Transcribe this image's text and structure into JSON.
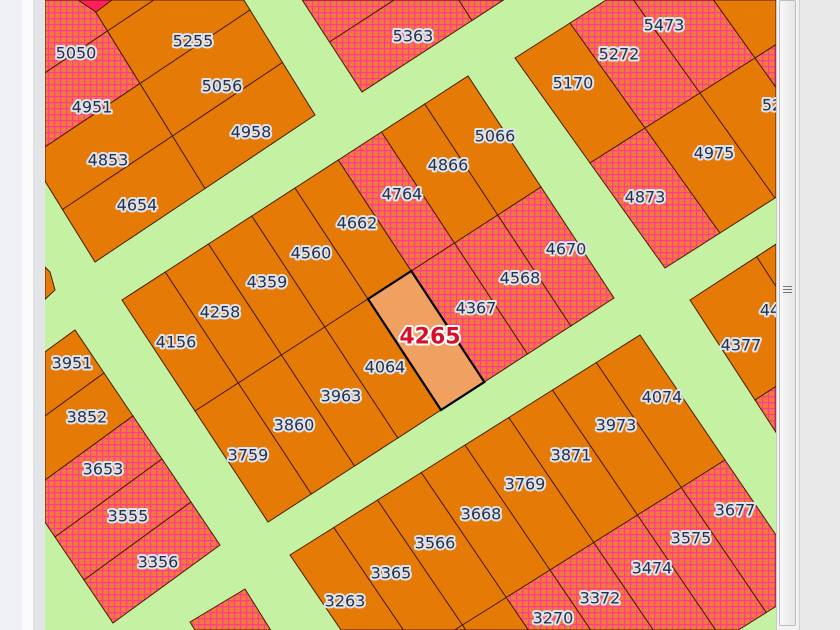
{
  "colors": {
    "street": "#c4f2a2",
    "parcel": "#e57a06",
    "hatch_background": "#f07a3a",
    "hatch_lines": "#ff3a90",
    "selected_fill": "#f0a060",
    "boundary": "#4a1e00",
    "label_text": "#26304a",
    "selected_label": "#d4102a",
    "flag": "#ff1f5a"
  },
  "legend_codes": {
    "o": "orange parcel",
    "p": "hatched pink parcel",
    "h": "selected parcel"
  },
  "blocks": {
    "central": [
      [
        "o",
        "o",
        "o",
        "o",
        "o",
        "p",
        "o",
        "o"
      ],
      [
        "o",
        "o",
        "o",
        "o",
        "h",
        "p",
        "p",
        "p"
      ]
    ],
    "upper_left": [
      [
        "p",
        "o"
      ],
      [
        "p",
        "o"
      ],
      [
        "o",
        "o"
      ],
      [
        "o",
        "o"
      ]
    ],
    "left": [
      [
        "o"
      ],
      [
        "o"
      ],
      [
        "p"
      ],
      [
        "p"
      ],
      [
        "p"
      ]
    ],
    "bottom": [
      [
        "o",
        "o",
        "o",
        "o",
        "o",
        "o",
        "o",
        "o"
      ],
      [
        "o",
        "o",
        "o",
        "p",
        "p",
        "p",
        "p",
        "p"
      ]
    ],
    "right_mid": [
      [
        "o",
        "o",
        "o"
      ],
      [
        "p",
        "p",
        "p"
      ]
    ],
    "upper_right": [
      [
        "o",
        "p",
        "p",
        "o"
      ],
      [
        "p",
        "o",
        "o",
        "p"
      ]
    ],
    "top_center": [
      [
        "p",
        "p"
      ],
      [
        "p",
        "p"
      ]
    ],
    "small_bottom": [
      [
        "p"
      ]
    ]
  },
  "selected_parcel": "4265",
  "parcels": [
    "5050",
    "5255",
    "5363",
    "5473",
    "5272",
    "5170",
    "5066",
    "4951",
    "5056",
    "4958",
    "4853",
    "4654",
    "4866",
    "4764",
    "4975",
    "4873",
    "52",
    "4662",
    "4560",
    "4670",
    "4568",
    "4359",
    "4258",
    "4367",
    "4265",
    "4156",
    "4064",
    "44",
    "4377",
    "3951",
    "3852",
    "3963",
    "4074",
    "3860",
    "3973",
    "3759",
    "3871",
    "3653",
    "3769",
    "3555",
    "3668",
    "3677",
    "3566",
    "3575",
    "3356",
    "3365",
    "3474",
    "3263",
    "3372",
    "3270"
  ]
}
